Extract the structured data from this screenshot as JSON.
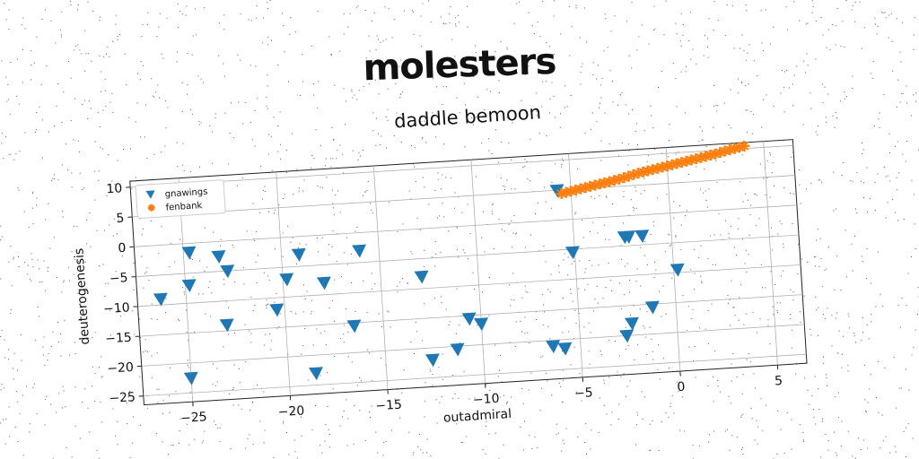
{
  "banner": "molesters",
  "colors": {
    "series1": "#1f77b4",
    "series2": "#ff7f0e",
    "grid": "#b0b0b0"
  },
  "chart_data": {
    "type": "scatter",
    "title": "daddle bemoon",
    "xlabel": "outadmiral",
    "ylabel": "deuterogenesis",
    "xlim": [
      -27.5,
      6.5
    ],
    "ylim": [
      -26.5,
      11
    ],
    "xticks": [
      -25,
      -20,
      -15,
      -10,
      -5,
      0,
      5
    ],
    "yticks": [
      -25,
      -20,
      -15,
      -10,
      -5,
      0,
      5,
      10
    ],
    "xtick_labels": [
      "−25",
      "−20",
      "−15",
      "−10",
      "−5",
      "0",
      "5"
    ],
    "ytick_labels": [
      "−25",
      "−20",
      "−15",
      "−10",
      "−5",
      "0",
      "5",
      "10"
    ],
    "grid": true,
    "legend_position": "top-left",
    "series": [
      {
        "name": "gnawings",
        "marker": "triangle-down",
        "x": [
          -26.3,
          -25.0,
          -24.8,
          -24.7,
          -23.2,
          -23.0,
          -22.8,
          -20.4,
          -19.8,
          -19.1,
          -18.6,
          -17.9,
          -16.5,
          -16.0,
          -12.9,
          -12.6,
          -11.3,
          -10.6,
          -10.0,
          -6.4,
          -5.8,
          -5.7,
          -5.1,
          -2.6,
          -2.4,
          -2.3,
          -2.2,
          -1.5,
          -1.2,
          0.2
        ],
        "y": [
          -9.0,
          -22.5,
          -7.0,
          -1.5,
          -2.5,
          -14.0,
          -5.0,
          -12.0,
          -7.0,
          -3.0,
          -23.0,
          -8.0,
          -15.5,
          -3.0,
          -8.0,
          -22.0,
          -20.5,
          -15.5,
          -16.5,
          -21.0,
          -21.5,
          5.0,
          -5.5,
          -20.0,
          -3.5,
          -18.0,
          -3.5,
          -3.5,
          -15.5,
          -9.5
        ]
      },
      {
        "name": "fenbank",
        "marker": "plus-star",
        "x": [
          -5.5,
          -5.0,
          -4.5,
          -4.0,
          -3.5,
          -3.0,
          -2.5,
          -2.0,
          -1.5,
          -1.0,
          -0.5,
          0.0,
          0.5,
          1.0,
          1.5,
          2.0,
          2.5,
          3.0,
          3.5,
          4.0
        ],
        "y": [
          4.4,
          4.7,
          5.0,
          5.3,
          5.6,
          5.9,
          6.2,
          6.6,
          7.0,
          7.3,
          7.6,
          7.9,
          8.2,
          8.5,
          8.8,
          9.1,
          9.4,
          9.8,
          10.1,
          10.4
        ]
      }
    ]
  }
}
